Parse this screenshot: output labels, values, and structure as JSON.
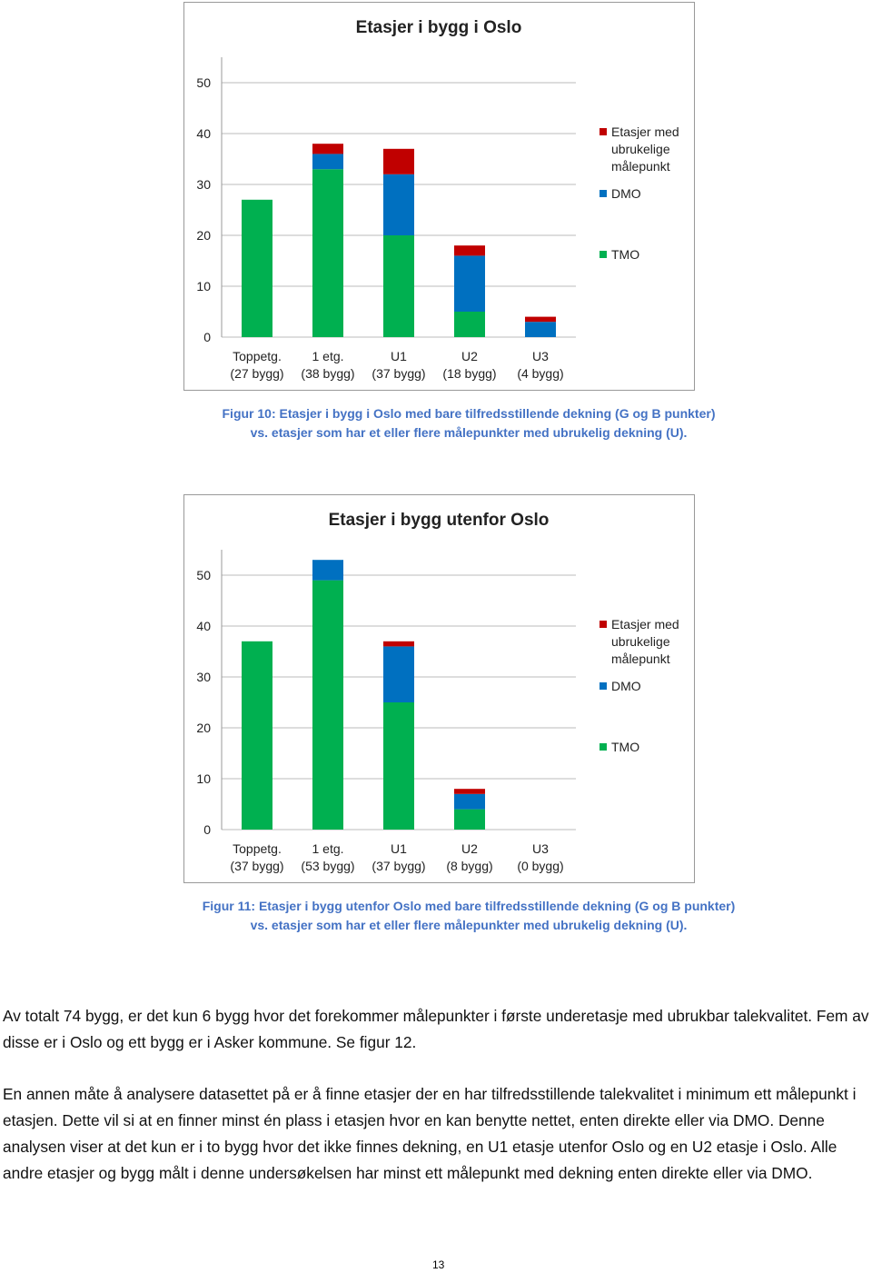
{
  "chart_data": [
    {
      "type": "stacked_bar",
      "title": "Etasjer i bygg i Oslo",
      "categories": [
        [
          "Toppetg.",
          "(27 bygg)"
        ],
        [
          "1 etg.",
          "(38 bygg)"
        ],
        [
          "U1",
          "(37 bygg)"
        ],
        [
          "U2",
          "(18 bygg)"
        ],
        [
          "U3",
          "(4 bygg)"
        ]
      ],
      "series": [
        {
          "name": "TMO",
          "color": "#00b050",
          "values": [
            27,
            33,
            20,
            5,
            0
          ]
        },
        {
          "name": "DMO",
          "color": "#0070c0",
          "values": [
            0,
            3,
            12,
            11,
            3
          ]
        },
        {
          "name": "Etasjer med ubrukelige målepunkt",
          "color": "#c00000",
          "values": [
            0,
            2,
            5,
            2,
            1
          ]
        }
      ],
      "ylim": [
        0,
        55
      ],
      "yticks": [
        0,
        10,
        20,
        30,
        40,
        50
      ],
      "grid": true,
      "legend": "right"
    },
    {
      "type": "stacked_bar",
      "title": "Etasjer i bygg utenfor Oslo",
      "categories": [
        [
          "Toppetg.",
          "(37 bygg)"
        ],
        [
          "1 etg.",
          "(53 bygg)"
        ],
        [
          "U1",
          "(37 bygg)"
        ],
        [
          "U2",
          "(8 bygg)"
        ],
        [
          "U3",
          "(0 bygg)"
        ]
      ],
      "series": [
        {
          "name": "TMO",
          "color": "#00b050",
          "values": [
            37,
            49,
            25,
            4,
            0
          ]
        },
        {
          "name": "DMO",
          "color": "#0070c0",
          "values": [
            0,
            4,
            11,
            3,
            0
          ]
        },
        {
          "name": "Etasjer med ubrukelige målepunkt",
          "color": "#c00000",
          "values": [
            0,
            0,
            1,
            1,
            0
          ]
        }
      ],
      "ylim": [
        0,
        55
      ],
      "yticks": [
        0,
        10,
        20,
        30,
        40,
        50
      ],
      "grid": true,
      "legend": "right"
    }
  ],
  "captions": [
    [
      "Figur 10: Etasjer i bygg i Oslo med bare tilfredsstillende dekning (G og B punkter)",
      "vs. etasjer som har et eller flere målepunkter med ubrukelig dekning (U)."
    ],
    [
      "Figur 11: Etasjer i bygg utenfor Oslo med bare tilfredsstillende dekning (G og B punkter)",
      "vs. etasjer som har et eller flere målepunkter med ubrukelig dekning (U)."
    ]
  ],
  "paragraphs": [
    "Av totalt 74 bygg, er det kun 6 bygg hvor det forekommer målepunkter i første underetasje med ubrukbar talekvalitet. Fem av disse er i Oslo og ett bygg er i Asker kommune. Se figur 12.",
    "En annen måte å analysere datasettet på er å finne etasjer der en har tilfredsstillende talekvalitet i minimum ett målepunkt i etasjen. Dette vil si at en finner minst én plass i etasjen hvor en kan benytte nettet, enten direkte eller via DMO. Denne analysen viser at det kun er i to bygg hvor det ikke finnes dekning, en U1 etasje utenfor Oslo og en U2 etasje i Oslo. Alle andre etasjer og bygg målt i denne undersøkelsen har minst ett målepunkt med dekning enten direkte eller via DMO."
  ],
  "page_number": "13"
}
